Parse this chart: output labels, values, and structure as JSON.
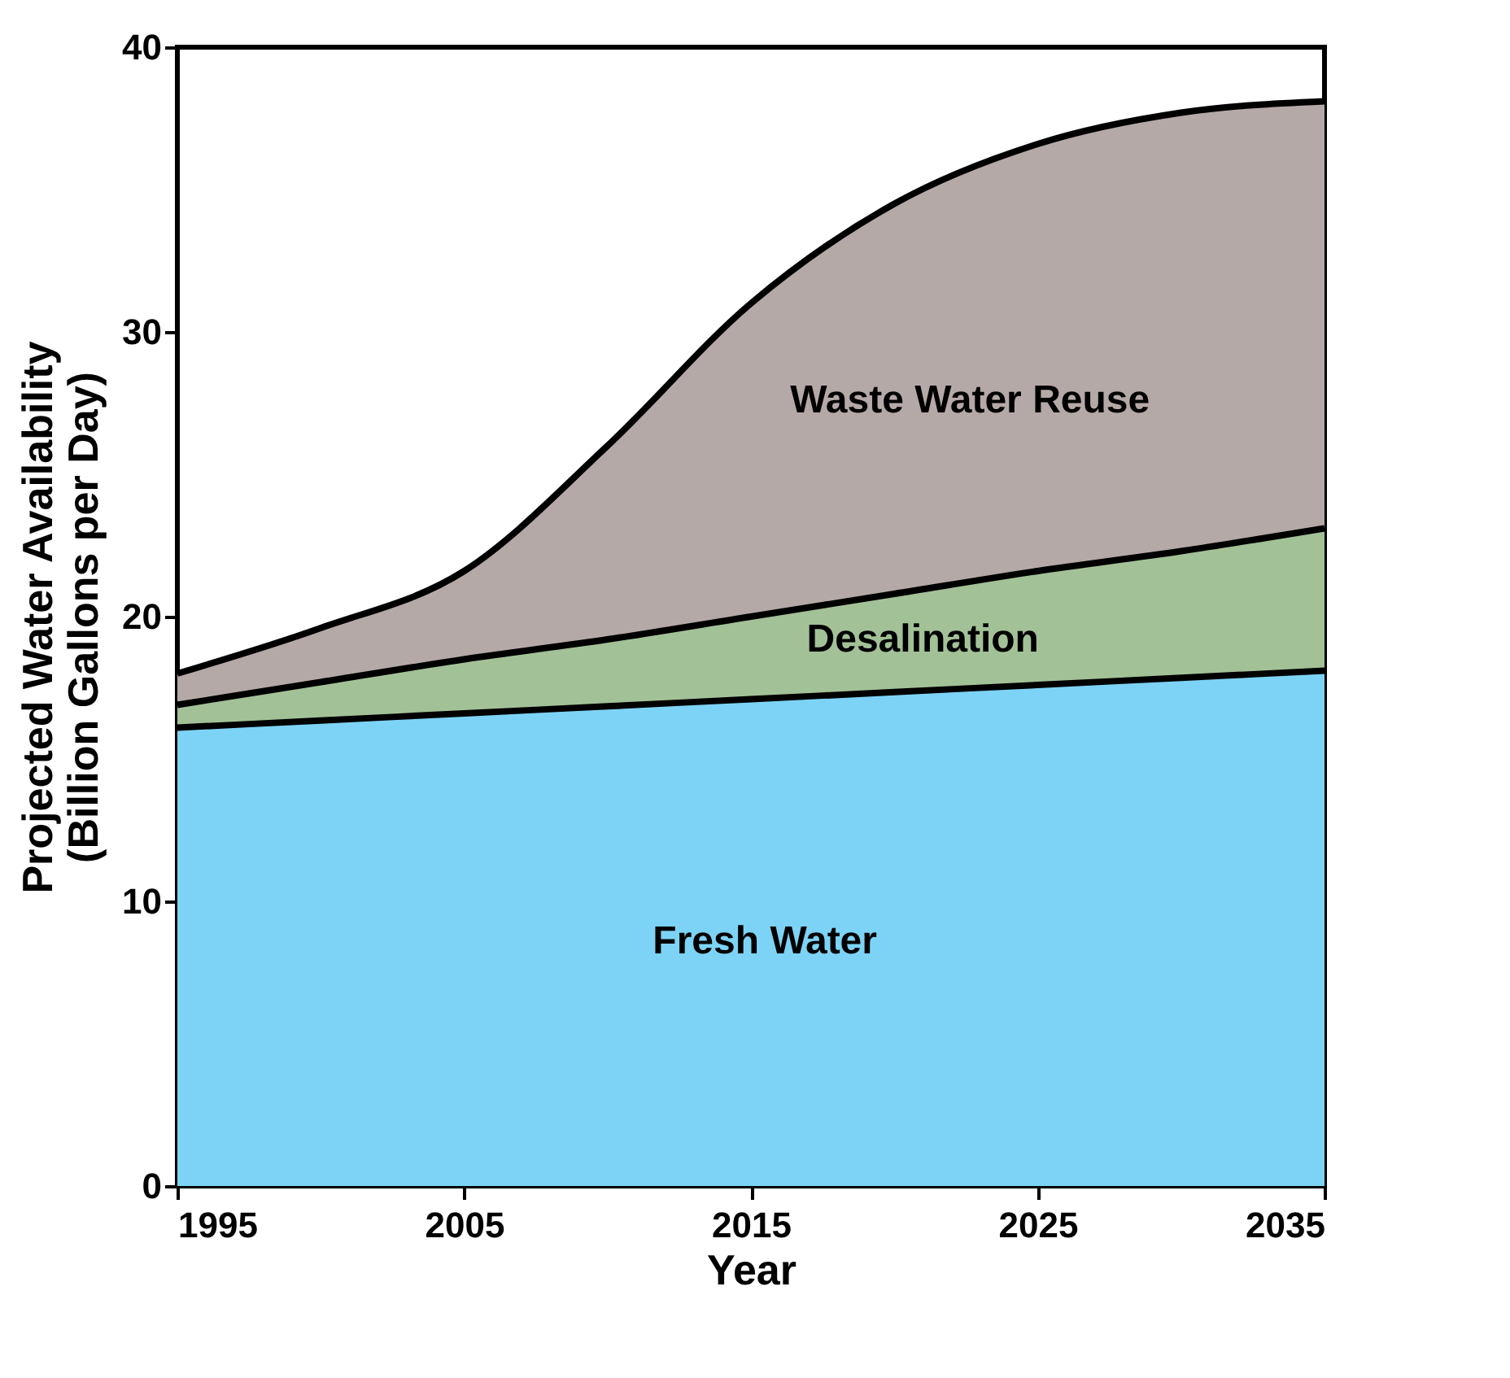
{
  "chart_data": {
    "type": "area",
    "stacked": true,
    "xlabel": "Year",
    "ylabel": "Projected Water Availability\n(Billion Gallons per Day)",
    "x": [
      1995,
      2000,
      2005,
      2010,
      2015,
      2020,
      2025,
      2030,
      2035
    ],
    "series": [
      {
        "name": "Fresh Water",
        "color": "#7dd3f5",
        "values": [
          16.1,
          16.35,
          16.6,
          16.85,
          17.1,
          17.35,
          17.6,
          17.85,
          18.1
        ]
      },
      {
        "name": "Desalination",
        "color": "#a3c197",
        "values": [
          0.8,
          1.35,
          1.9,
          2.35,
          2.9,
          3.45,
          4.0,
          4.45,
          5.0
        ]
      },
      {
        "name": "Waste Water Reuse",
        "color": "#b5a9a7",
        "values": [
          1.1,
          1.9,
          3.1,
          6.8,
          11.0,
          13.7,
          15.0,
          15.4,
          15.0
        ]
      }
    ],
    "xlim": [
      1995,
      2035
    ],
    "xticks": [
      1995,
      2005,
      2015,
      2025,
      2035
    ],
    "ylim": [
      0,
      40
    ],
    "yticks": [
      0,
      10,
      20,
      30,
      40
    ],
    "grid": false
  }
}
